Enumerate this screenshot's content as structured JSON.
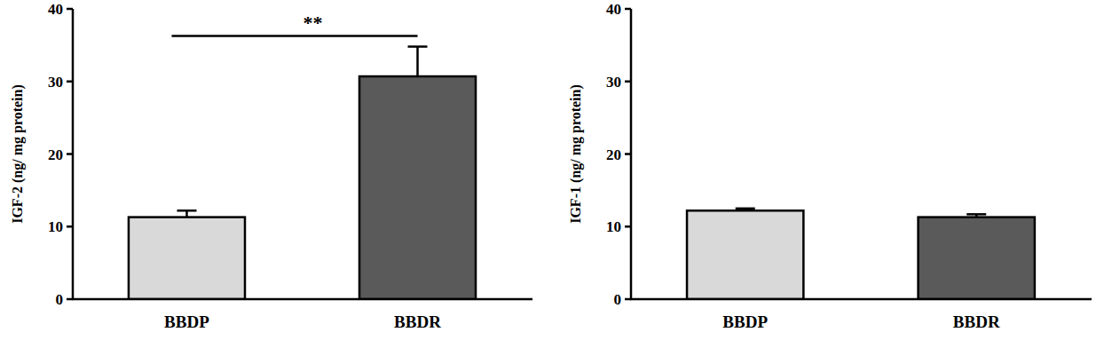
{
  "chart_data": [
    {
      "type": "bar",
      "y_label": "IGF-2 (ng/ mg protein)",
      "categories": [
        "BBDP",
        "BBDR"
      ],
      "values": [
        11.3,
        30.7
      ],
      "errors": [
        0.9,
        4.1
      ],
      "colors": [
        "#d9d9d9",
        "#5a5a5a"
      ],
      "ylim": [
        0,
        40
      ],
      "yticks": [
        0,
        10,
        20,
        30,
        40
      ],
      "grid": false,
      "annotations": [
        "**"
      ]
    },
    {
      "type": "bar",
      "y_label": "IGF-1 (ng/ mg protein)",
      "categories": [
        "BBDP",
        "BBDR"
      ],
      "values": [
        12.2,
        11.3
      ],
      "errors": [
        0.3,
        0.4
      ],
      "colors": [
        "#d9d9d9",
        "#5a5a5a"
      ],
      "ylim": [
        0,
        40
      ],
      "yticks": [
        0,
        10,
        20,
        30,
        40
      ],
      "grid": false
    }
  ]
}
